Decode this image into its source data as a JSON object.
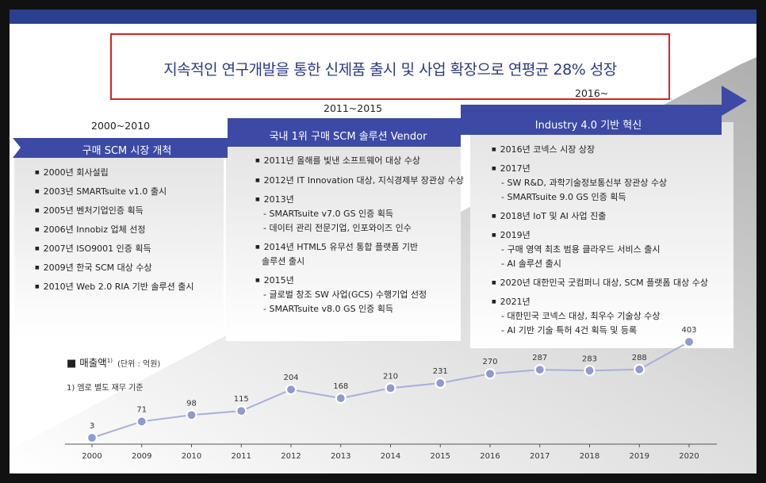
{
  "headline": "지속적인 연구개발을 통한 신제품 출시 및 사업 확장으로 연평균 28% 성장",
  "phases": [
    {
      "period": "2000~2010",
      "title": "구매 SCM 시장 개척",
      "items": [
        {
          "text": "2000년 회사설립"
        },
        {
          "text": "2003년  SMARTsuite v1.0 출시"
        },
        {
          "text": "2005년 벤처기업인증 획득"
        },
        {
          "text": "2006년 Innobiz 업체 선정"
        },
        {
          "text": "2007년 ISO9001 인증 획득"
        },
        {
          "text": "2009년 한국 SCM 대상 수상"
        },
        {
          "text": "2010년 Web 2.0 RIA 기반 솔루션 출시"
        }
      ]
    },
    {
      "period": "2011~2015",
      "title": "국내 1위 구매 SCM 솔루션 Vendor",
      "items": [
        {
          "text": "2011년 올해를 빛낸 소프트웨어 대상 수상"
        },
        {
          "text": "2012년 IT Innovation 대상, 지식경제부 장관상 수상"
        },
        {
          "text": "2013년",
          "sub": [
            "- SMARTsuite v7.0 GS 인증 획득",
            "- 데이터 관리 전문기업, 인포와이즈 인수"
          ]
        },
        {
          "text": "2014년  HTML5 유무선 통합 플랫폼 기반",
          "cont": "솔루션 출시"
        },
        {
          "text": "2015년",
          "sub": [
            "- 글로벌 창조 SW 사업(GCS) 수행기업 선정",
            "- SMARTsuite v8.0 GS 인증 획득"
          ]
        }
      ]
    },
    {
      "period": "2016~",
      "title": "Industry 4.0 기반 혁신",
      "items": [
        {
          "text": "2016년 코넥스 시장 상장"
        },
        {
          "text": "2017년",
          "sub": [
            "- SW R&D, 과학기술정보통신부 장관상 수상",
            "- SMARTsuite 9.0 GS 인증 획득"
          ]
        },
        {
          "text": "2018년 IoT 및 AI 사업 진출"
        },
        {
          "text": "2019년",
          "sub": [
            "- 구매 영역 최초 범용 클라우드 서비스 출시",
            "- AI 솔루션 출시"
          ]
        },
        {
          "text": "2020년 대한민국 굿컴퍼니 대상, SCM 플랫폼 대상 수상"
        },
        {
          "text": "2021년",
          "sub": [
            "- 대한민국 코넥스 대상, 최우수 기술상 수상",
            "- AI 기반 기술 특허 4건 획득 및 등록"
          ]
        }
      ]
    }
  ],
  "sales": {
    "title": "매출액",
    "superscript": "1)",
    "unit": "(단위 : 억원)",
    "footnote": "1) 엠로 별도 재무 기준"
  },
  "colors": {
    "accent": "#3c4aa6",
    "topbar": "#2b3f8f",
    "headline_border": "#d9231f",
    "headline_text": "#2b3a86",
    "marker_fill": "#8e9ad0",
    "line": "#a9aedb"
  },
  "chart_data": {
    "type": "line",
    "categories": [
      "2000",
      "2009",
      "2010",
      "2011",
      "2012",
      "2013",
      "2014",
      "2015",
      "2016",
      "2017",
      "2018",
      "2019",
      "2020"
    ],
    "values": [
      3,
      71,
      98,
      115,
      204,
      168,
      210,
      231,
      270,
      287,
      283,
      288,
      403
    ],
    "title": "매출액",
    "ylabel": "(단위 : 억원)",
    "data_labels": true,
    "grid": false
  }
}
